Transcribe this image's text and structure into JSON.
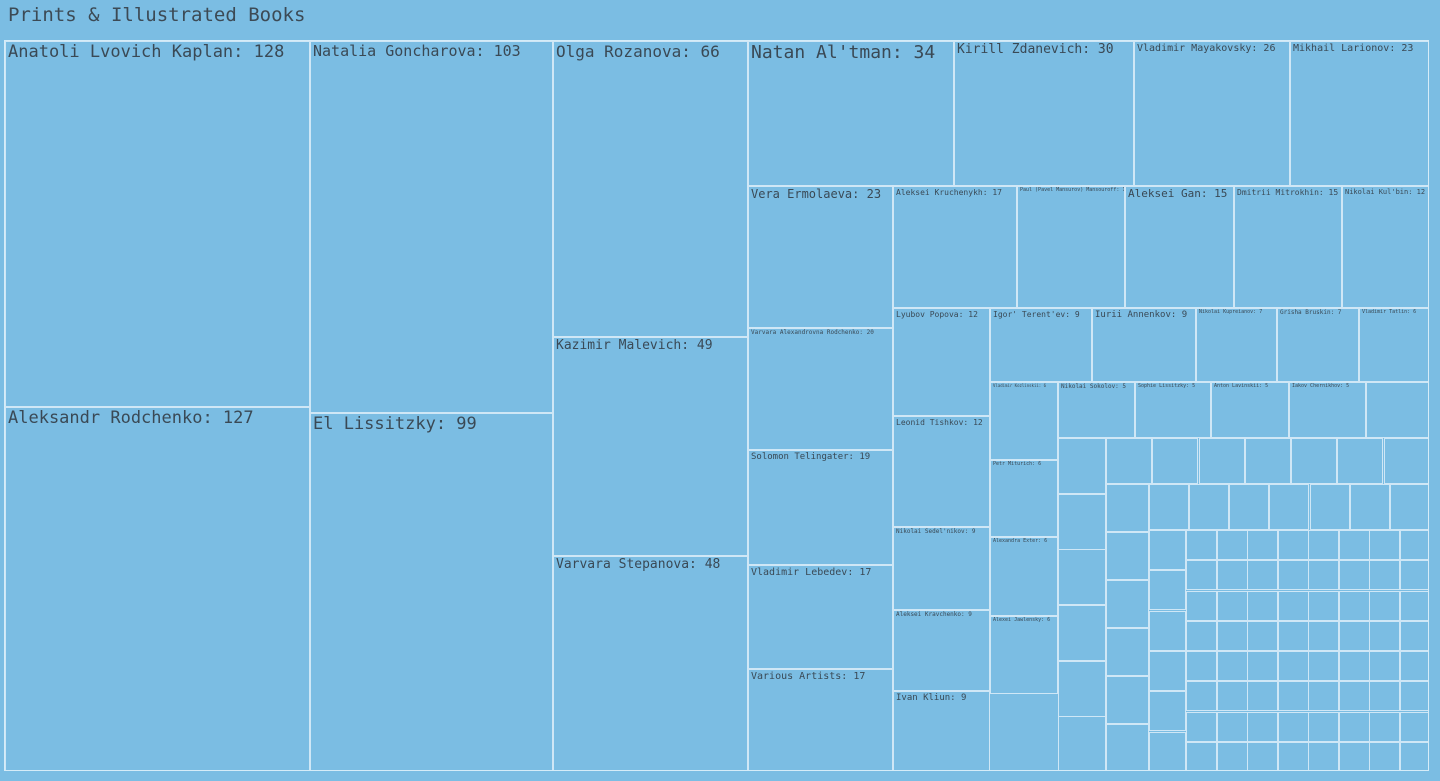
{
  "title": "Prints & Illustrated Books",
  "chart_data": {
    "type": "treemap",
    "title": "Prints & Illustrated Books",
    "items": [
      {
        "label": "Anatoli Lvovich Kaplan",
        "value": 128
      },
      {
        "label": "Aleksandr Rodchenko",
        "value": 127
      },
      {
        "label": "Natalia Goncharova",
        "value": 103
      },
      {
        "label": "El Lissitzky",
        "value": 99
      },
      {
        "label": "Olga Rozanova",
        "value": 66
      },
      {
        "label": "Kazimir Malevich",
        "value": 49
      },
      {
        "label": "Varvara Stepanova",
        "value": 48
      },
      {
        "label": "Natan Al'tman",
        "value": 34
      },
      {
        "label": "Kirill Zdanevich",
        "value": 30
      },
      {
        "label": "Vladimir Mayakovsky",
        "value": 26
      },
      {
        "label": "Mikhail Larionov",
        "value": 23
      },
      {
        "label": "Vera Ermolaeva",
        "value": 23
      },
      {
        "label": "Varvara Alexandrovna Rodchenko",
        "value": 20
      },
      {
        "label": "Solomon Telingater",
        "value": 19
      },
      {
        "label": "Vladimir Lebedev",
        "value": 17
      },
      {
        "label": "Various Artists",
        "value": 17
      },
      {
        "label": "Aleksei Kruchenykh",
        "value": 17
      },
      {
        "label": "Paul (Pavel Mansurov) Mansouroff",
        "value": 15
      },
      {
        "label": "Aleksei Gan",
        "value": 15
      },
      {
        "label": "Dmitrii Mitrokhin",
        "value": 15
      },
      {
        "label": "Nikolai Kul'bin",
        "value": 12
      },
      {
        "label": "Lyubov Popova",
        "value": 12
      },
      {
        "label": "Leonid Tishkov",
        "value": 12
      },
      {
        "label": "Igor' Terent'ev",
        "value": 9
      },
      {
        "label": "Iurii Annenkov",
        "value": 9
      },
      {
        "label": "Nikolai Kupreianov",
        "value": 7
      },
      {
        "label": "Grisha Bruskin",
        "value": 7
      },
      {
        "label": "Vladimir Tatlin",
        "value": 6
      },
      {
        "label": "Nikolai Sedel'nikov",
        "value": 9
      },
      {
        "label": "Aleksei Kravchenko",
        "value": 9
      },
      {
        "label": "Ivan Kliun",
        "value": 9
      },
      {
        "label": "Vladimir Kozlinskii",
        "value": 6
      },
      {
        "label": "Petr Miturich",
        "value": 6
      },
      {
        "label": "Alexandra Exter",
        "value": 6
      },
      {
        "label": "Alexei Jawlensky",
        "value": 6
      },
      {
        "label": "Nikolai Sokolov",
        "value": 5
      },
      {
        "label": "Sophie Lissitzky",
        "value": 5
      },
      {
        "label": "Anton Lavinskii",
        "value": 5
      },
      {
        "label": "Iakov Chernikhov",
        "value": 5
      }
    ]
  }
}
